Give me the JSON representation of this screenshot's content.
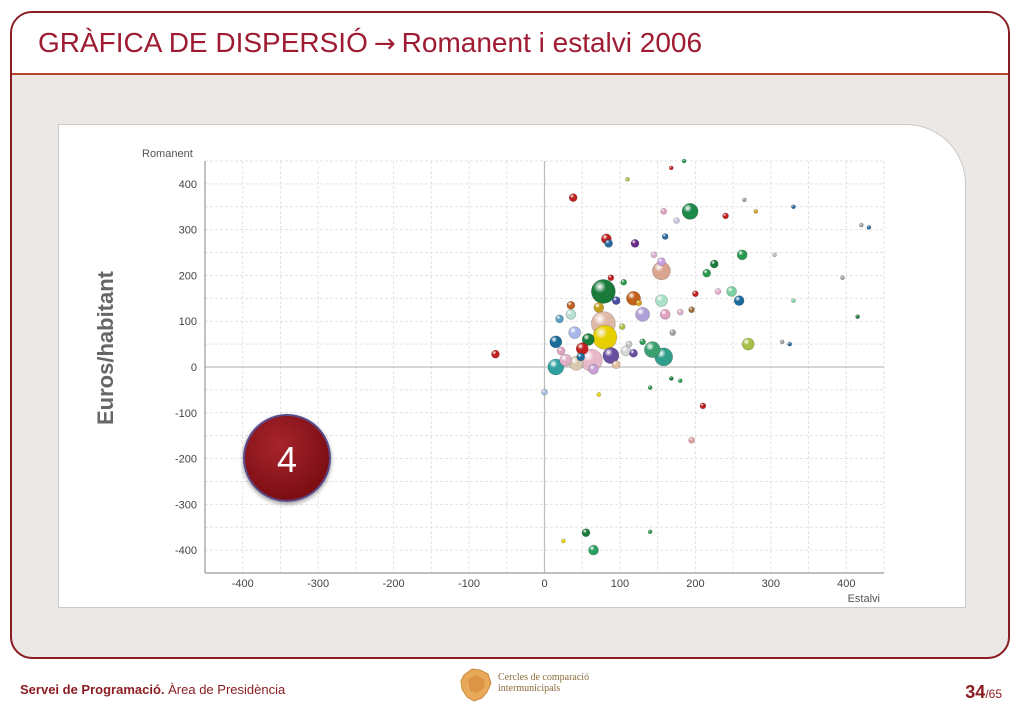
{
  "slide": {
    "title_main": "GRÀFICA DE DISPERSIÓ",
    "title_arrow": "→",
    "title_sub": "Romanent i estalvi 2006",
    "badge_number": "4",
    "side_label": "Euros/habitant"
  },
  "footer": {
    "org_bold": "Servei de Programació.",
    "org_rest": " Àrea de Presidència",
    "logo_line1": "Cercles de comparació",
    "logo_line2": "intermunicipals",
    "page_current": "34",
    "page_total": "/65"
  },
  "colors": {
    "accent": "#9e1b32",
    "frame": "#8b1d22",
    "background": "#ece8e5"
  },
  "chart_data": {
    "type": "scatter",
    "title": "",
    "xlabel": "Estalvi",
    "ylabel": "Romanent",
    "xlim": [
      -450,
      450
    ],
    "ylim": [
      -450,
      450
    ],
    "xticks": [
      -400,
      -300,
      -200,
      -100,
      0,
      100,
      200,
      300,
      400
    ],
    "yticks": [
      400,
      300,
      200,
      100,
      0,
      -100,
      -200,
      -300,
      -400
    ],
    "grid": true,
    "points": [
      {
        "x": 193,
        "y": 340,
        "r": 8,
        "color": "#1e8a4a"
      },
      {
        "x": 78,
        "y": 165,
        "r": 12,
        "color": "#1a7a3a"
      },
      {
        "x": 155,
        "y": 210,
        "r": 9,
        "color": "#d9a58e"
      },
      {
        "x": 78,
        "y": 95,
        "r": 12,
        "color": "#e0b8a8"
      },
      {
        "x": 80,
        "y": 65,
        "r": 12,
        "color": "#e8d000"
      },
      {
        "x": 62,
        "y": 15,
        "r": 11,
        "color": "#e6b8c8"
      },
      {
        "x": 88,
        "y": 25,
        "r": 8,
        "color": "#6a4ea0"
      },
      {
        "x": 158,
        "y": 22,
        "r": 9,
        "color": "#2f9e8a"
      },
      {
        "x": 143,
        "y": 38,
        "r": 8,
        "color": "#3aa070"
      },
      {
        "x": 118,
        "y": 150,
        "r": 7,
        "color": "#c0601a"
      },
      {
        "x": 130,
        "y": 115,
        "r": 7,
        "color": "#b0a0d8"
      },
      {
        "x": 270,
        "y": 50,
        "r": 6,
        "color": "#a8c04a"
      },
      {
        "x": 262,
        "y": 245,
        "r": 5,
        "color": "#2a9a50"
      },
      {
        "x": 248,
        "y": 165,
        "r": 5,
        "color": "#7ad0a0"
      },
      {
        "x": 258,
        "y": 145,
        "r": 5,
        "color": "#1a6a9a"
      },
      {
        "x": 155,
        "y": 145,
        "r": 6,
        "color": "#a8e0c8"
      },
      {
        "x": 160,
        "y": 115,
        "r": 5,
        "color": "#e0a0c0"
      },
      {
        "x": 82,
        "y": 280,
        "r": 5,
        "color": "#c02020"
      },
      {
        "x": 38,
        "y": 370,
        "r": 4,
        "color": "#c02020"
      },
      {
        "x": -65,
        "y": 28,
        "r": 4,
        "color": "#c02020"
      },
      {
        "x": 210,
        "y": -85,
        "r": 3,
        "color": "#c02020"
      },
      {
        "x": 195,
        "y": -160,
        "r": 3,
        "color": "#e0a0a0"
      },
      {
        "x": 55,
        "y": -362,
        "r": 4,
        "color": "#1a7a3a"
      },
      {
        "x": 65,
        "y": -400,
        "r": 5,
        "color": "#2aa060"
      },
      {
        "x": 15,
        "y": 55,
        "r": 6,
        "color": "#1a6a9a"
      },
      {
        "x": 15,
        "y": 0,
        "r": 8,
        "color": "#2fa0a0"
      },
      {
        "x": 42,
        "y": 8,
        "r": 7,
        "color": "#d8c8b0"
      },
      {
        "x": 58,
        "y": 60,
        "r": 6,
        "color": "#1a7a3a"
      },
      {
        "x": 50,
        "y": 40,
        "r": 6,
        "color": "#c02020"
      },
      {
        "x": 28,
        "y": 15,
        "r": 6,
        "color": "#e0b0c8"
      },
      {
        "x": 35,
        "y": 115,
        "r": 5,
        "color": "#b8e0d0"
      },
      {
        "x": 40,
        "y": 75,
        "r": 6,
        "color": "#a8b8e8"
      },
      {
        "x": 108,
        "y": 35,
        "r": 5,
        "color": "#d8d8d8"
      },
      {
        "x": 118,
        "y": 30,
        "r": 4,
        "color": "#6a4ea0"
      },
      {
        "x": 95,
        "y": 145,
        "r": 4,
        "color": "#4a4ea0"
      },
      {
        "x": 72,
        "y": 130,
        "r": 5,
        "color": "#c8a020"
      },
      {
        "x": 85,
        "y": 270,
        "r": 4,
        "color": "#2a6aa0"
      },
      {
        "x": 120,
        "y": 270,
        "r": 4,
        "color": "#6a2a8a"
      },
      {
        "x": 155,
        "y": 230,
        "r": 4,
        "color": "#c8a0e0"
      },
      {
        "x": 225,
        "y": 225,
        "r": 4,
        "color": "#1a7a3a"
      },
      {
        "x": 215,
        "y": 205,
        "r": 4,
        "color": "#2a9a50"
      },
      {
        "x": 200,
        "y": 160,
        "r": 3,
        "color": "#c02020"
      },
      {
        "x": 230,
        "y": 165,
        "r": 3,
        "color": "#e0b0c8"
      },
      {
        "x": 195,
        "y": 125,
        "r": 3,
        "color": "#a07040"
      },
      {
        "x": 35,
        "y": 135,
        "r": 4,
        "color": "#c06020"
      },
      {
        "x": 20,
        "y": 105,
        "r": 4,
        "color": "#5aa0c0"
      },
      {
        "x": 88,
        "y": 195,
        "r": 3,
        "color": "#c02020"
      },
      {
        "x": 105,
        "y": 185,
        "r": 3,
        "color": "#2a9a50"
      },
      {
        "x": 125,
        "y": 140,
        "r": 3,
        "color": "#d8a020"
      },
      {
        "x": 103,
        "y": 88,
        "r": 3,
        "color": "#a8c04a"
      },
      {
        "x": 170,
        "y": 75,
        "r": 3,
        "color": "#a0a0a0"
      },
      {
        "x": 145,
        "y": 245,
        "r": 3,
        "color": "#e0b0d0"
      },
      {
        "x": 160,
        "y": 285,
        "r": 3,
        "color": "#2a6aa0"
      },
      {
        "x": 158,
        "y": 340,
        "r": 3,
        "color": "#e0a0c0"
      },
      {
        "x": 175,
        "y": 320,
        "r": 3,
        "color": "#c8c8e0"
      },
      {
        "x": 240,
        "y": 330,
        "r": 3,
        "color": "#c02020"
      },
      {
        "x": 110,
        "y": 410,
        "r": 2,
        "color": "#a8c04a"
      },
      {
        "x": 185,
        "y": 450,
        "r": 2,
        "color": "#2a9a50"
      },
      {
        "x": 168,
        "y": 435,
        "r": 2,
        "color": "#c02020"
      },
      {
        "x": 265,
        "y": 365,
        "r": 2,
        "color": "#a0a0a0"
      },
      {
        "x": 330,
        "y": 350,
        "r": 2,
        "color": "#2a6aa0"
      },
      {
        "x": 420,
        "y": 310,
        "r": 2,
        "color": "#a0a0a0"
      },
      {
        "x": 430,
        "y": 305,
        "r": 2,
        "color": "#2a6aa0"
      },
      {
        "x": 395,
        "y": 195,
        "r": 2,
        "color": "#a0a0a0"
      },
      {
        "x": 415,
        "y": 110,
        "r": 2,
        "color": "#1a7a3a"
      },
      {
        "x": 325,
        "y": 50,
        "r": 2,
        "color": "#2a6aa0"
      },
      {
        "x": 315,
        "y": 55,
        "r": 2,
        "color": "#a0a0a0"
      },
      {
        "x": 330,
        "y": 145,
        "r": 2,
        "color": "#7ad0a0"
      },
      {
        "x": 305,
        "y": 245,
        "r": 2,
        "color": "#c0c0c0"
      },
      {
        "x": 280,
        "y": 340,
        "r": 2,
        "color": "#c8a020"
      },
      {
        "x": 0,
        "y": -55,
        "r": 3,
        "color": "#a0c0e0"
      },
      {
        "x": 72,
        "y": -60,
        "r": 2,
        "color": "#e8d000"
      },
      {
        "x": 140,
        "y": -45,
        "r": 2,
        "color": "#2a9a50"
      },
      {
        "x": 168,
        "y": -25,
        "r": 2,
        "color": "#1a7a3a"
      },
      {
        "x": 180,
        "y": -30,
        "r": 2,
        "color": "#2a9a50"
      },
      {
        "x": 140,
        "y": -360,
        "r": 2,
        "color": "#2a9a50"
      },
      {
        "x": 25,
        "y": -380,
        "r": 2,
        "color": "#e8d000"
      },
      {
        "x": 65,
        "y": -5,
        "r": 5,
        "color": "#c8a0d8"
      },
      {
        "x": 95,
        "y": 5,
        "r": 4,
        "color": "#e0c0a0"
      },
      {
        "x": 48,
        "y": 22,
        "r": 4,
        "color": "#1a6a9a"
      },
      {
        "x": 22,
        "y": 35,
        "r": 4,
        "color": "#e0a0c0"
      },
      {
        "x": 130,
        "y": 55,
        "r": 3,
        "color": "#2a9a50"
      },
      {
        "x": 112,
        "y": 50,
        "r": 3,
        "color": "#c8c8c8"
      },
      {
        "x": 180,
        "y": 120,
        "r": 3,
        "color": "#e0b0d0"
      }
    ]
  }
}
